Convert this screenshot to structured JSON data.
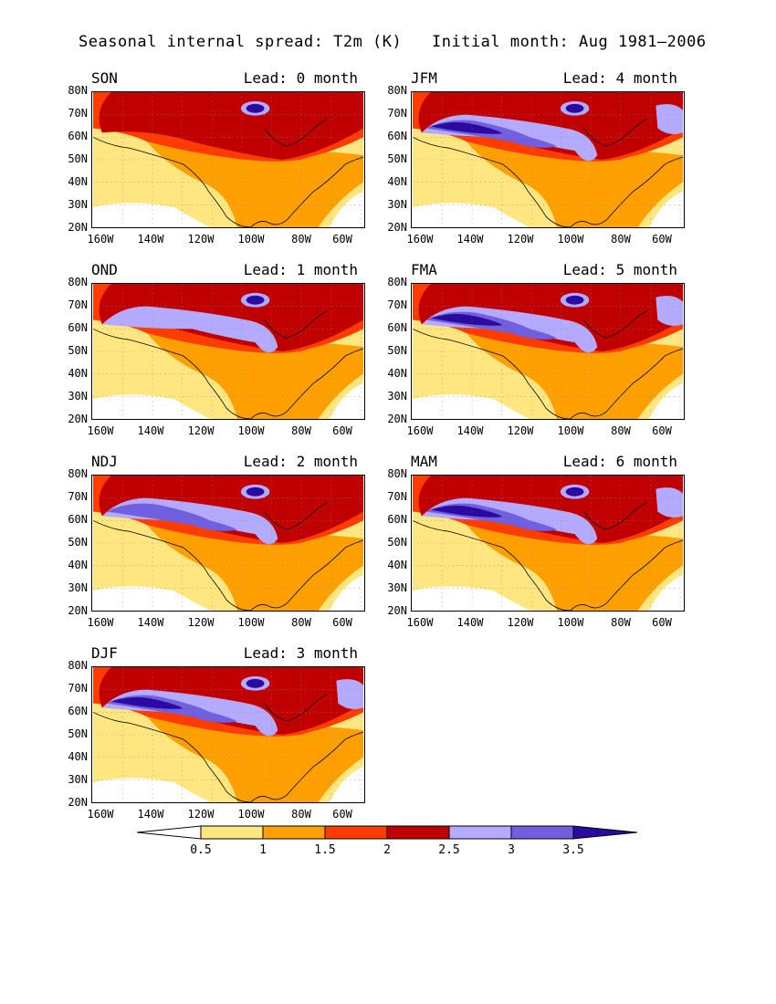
{
  "title": {
    "left": "Seasonal internal spread: T2m (K)",
    "right": "Initial month: Aug 1981‒2006"
  },
  "axes": {
    "lat_labels": [
      "80N",
      "70N",
      "60N",
      "50N",
      "40N",
      "30N",
      "20N"
    ],
    "lon_labels": [
      "160W",
      "140W",
      "120W",
      "100W",
      "80W",
      "60W"
    ]
  },
  "panels": [
    {
      "season": "SON",
      "lead": "Lead: 0 month",
      "level": 0
    },
    {
      "season": "JFM",
      "lead": "Lead: 4 month",
      "level": 4
    },
    {
      "season": "OND",
      "lead": "Lead: 1 month",
      "level": 1
    },
    {
      "season": "FMA",
      "lead": "Lead: 5 month",
      "level": 5
    },
    {
      "season": "NDJ",
      "lead": "Lead: 2 month",
      "level": 2
    },
    {
      "season": "MAM",
      "lead": "Lead: 6 month",
      "level": 6
    },
    {
      "season": "DJF",
      "lead": "Lead: 3 month",
      "level": 3
    }
  ],
  "colorbar": {
    "labels": [
      "0.5",
      "1",
      "1.5",
      "2",
      "2.5",
      "3",
      "3.5"
    ],
    "colors": [
      "#ffffff",
      "#ffe680",
      "#ffa000",
      "#ff3c00",
      "#c00000",
      "#b4aaff",
      "#7060e0",
      "#2a0aa0"
    ]
  }
}
